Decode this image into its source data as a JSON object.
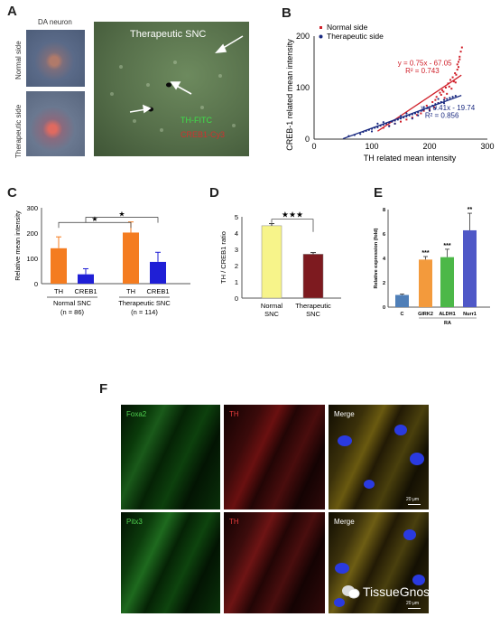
{
  "panels": {
    "A": {
      "label": "A",
      "da_neuron": "DA neuron",
      "normal_side": "Normal side",
      "therapeutic_side": "Therapeutic side",
      "therapeutic_snc": "Therapeutic SNC",
      "th_fitc": "TH-FITC",
      "creb1_cy3": "CREB1-Cy3"
    },
    "B": {
      "label": "B"
    },
    "C": {
      "label": "C"
    },
    "D": {
      "label": "D"
    },
    "E": {
      "label": "E"
    },
    "F": {
      "label": "F",
      "row1": [
        "Foxa2",
        "TH",
        "Merge"
      ],
      "row2": [
        "Pitx3",
        "TH",
        "Merge"
      ],
      "scalebar": "20 μm",
      "watermark": "TissueGnostics"
    }
  },
  "chart_data": [
    {
      "id": "B",
      "type": "scatter",
      "xlabel": "TH related mean intensity",
      "ylabel": "CREB-1 related mean intensity",
      "xlim": [
        0,
        300
      ],
      "ylim": [
        0,
        200
      ],
      "xticks": [
        "0",
        "100",
        "200",
        "300"
      ],
      "yticks": [
        "0",
        "100",
        "200"
      ],
      "legend": "top-left",
      "series": [
        {
          "name": "Normal side",
          "color": "#d0202a",
          "equation": "y = 0.75x - 67.05",
          "r2": "R² = 0.743",
          "fit": [
            0.75,
            -67.05
          ],
          "fit_range": [
            110,
            255
          ],
          "points": [
            [
              195,
              65
            ],
            [
              205,
              72
            ],
            [
              212,
              82
            ],
            [
              218,
              90
            ],
            [
              222,
              95
            ],
            [
              228,
              100
            ],
            [
              232,
              108
            ],
            [
              236,
              115
            ],
            [
              240,
              120
            ],
            [
              244,
              128
            ],
            [
              248,
              135
            ],
            [
              250,
              150
            ],
            [
              252,
              160
            ],
            [
              254,
              170
            ],
            [
              256,
              178
            ],
            [
              245,
              110
            ],
            [
              238,
              98
            ],
            [
              230,
              88
            ],
            [
              226,
              80
            ],
            [
              215,
              70
            ],
            [
              208,
              62
            ],
            [
              200,
              58
            ],
            [
              190,
              55
            ],
            [
              185,
              50
            ],
            [
              178,
              47
            ],
            [
              170,
              42
            ],
            [
              160,
              38
            ],
            [
              150,
              34
            ],
            [
              140,
              30
            ],
            [
              130,
              26
            ],
            [
              120,
              22
            ],
            [
              248,
              145
            ],
            [
              252,
              155
            ],
            [
              246,
              125
            ],
            [
              242,
              112
            ],
            [
              234,
              102
            ],
            [
              220,
              86
            ],
            [
              210,
              76
            ],
            [
              224,
              92
            ],
            [
              250,
              140
            ]
          ]
        },
        {
          "name": "Therapeutic side",
          "color": "#1a2a80",
          "equation": "y = 0.41x - 19.74",
          "r2": "R² = 0.856",
          "fit": [
            0.41,
            -19.74
          ],
          "fit_range": [
            50,
            255
          ],
          "points": [
            [
              60,
              6
            ],
            [
              70,
              8
            ],
            [
              80,
              10
            ],
            [
              85,
              14
            ],
            [
              90,
              16
            ],
            [
              95,
              18
            ],
            [
              100,
              20
            ],
            [
              105,
              22
            ],
            [
              110,
              23
            ],
            [
              115,
              26
            ],
            [
              120,
              28
            ],
            [
              125,
              30
            ],
            [
              130,
              32
            ],
            [
              135,
              34
            ],
            [
              140,
              36
            ],
            [
              145,
              38
            ],
            [
              150,
              40
            ],
            [
              155,
              42
            ],
            [
              160,
              44
            ],
            [
              165,
              46
            ],
            [
              170,
              48
            ],
            [
              175,
              50
            ],
            [
              180,
              52
            ],
            [
              185,
              55
            ],
            [
              190,
              57
            ],
            [
              195,
              60
            ],
            [
              200,
              62
            ],
            [
              205,
              65
            ],
            [
              210,
              68
            ],
            [
              215,
              70
            ],
            [
              220,
              72
            ],
            [
              225,
              76
            ],
            [
              230,
              78
            ],
            [
              235,
              80
            ],
            [
              240,
              82
            ],
            [
              245,
              84
            ],
            [
              110,
              30
            ],
            [
              130,
              25
            ],
            [
              150,
              45
            ],
            [
              170,
              40
            ],
            [
              190,
              62
            ],
            [
              210,
              60
            ],
            [
              225,
              70
            ],
            [
              100,
              15
            ],
            [
              120,
              33
            ],
            [
              140,
              30
            ],
            [
              160,
              50
            ],
            [
              180,
              46
            ],
            [
              200,
              55
            ],
            [
              215,
              78
            ]
          ]
        }
      ]
    },
    {
      "id": "C",
      "type": "bar",
      "ylabel": "Relative mean intensity",
      "ylim": [
        0,
        300
      ],
      "yticks": [
        "0",
        "100",
        "200",
        "300"
      ],
      "groups": [
        {
          "name": "Normal SNC",
          "n": "(n = 86)",
          "bars": [
            {
              "label": "TH",
              "value": 140,
              "err": 45,
              "color": "#f47c20"
            },
            {
              "label": "CREB1",
              "value": 37,
              "err": 22,
              "color": "#1f1fd6"
            }
          ]
        },
        {
          "name": "Therapeutic SNC",
          "n": "(n = 114)",
          "bars": [
            {
              "label": "TH",
              "value": 202,
              "err": 42,
              "color": "#f47c20"
            },
            {
              "label": "CREB1",
              "value": 86,
              "err": 38,
              "color": "#1f1fd6"
            }
          ]
        }
      ],
      "significance": [
        "★",
        "★"
      ]
    },
    {
      "id": "D",
      "type": "bar",
      "ylabel": "TH / CREB1 ratio",
      "ylim": [
        0,
        5
      ],
      "yticks": [
        "0",
        "1",
        "2",
        "3",
        "4",
        "5"
      ],
      "bars": [
        {
          "label": "Normal\nSNC",
          "value": 4.45,
          "err": 0.13,
          "color": "#f7f48a"
        },
        {
          "label": "Therapeutic\nSNC",
          "value": 2.7,
          "err": 0.1,
          "color": "#7d1a1f"
        }
      ],
      "significance": "★★★"
    },
    {
      "id": "E",
      "type": "bar",
      "ylabel": "Relative expression (fold)",
      "ylim": [
        0,
        8
      ],
      "yticks": [
        "0",
        "2",
        "4",
        "6",
        "8"
      ],
      "bars": [
        {
          "label": "C",
          "value": 1.0,
          "err": 0.08,
          "color": "#4f7fb8",
          "sig": ""
        },
        {
          "label": "GIRK2",
          "value": 3.9,
          "err": 0.25,
          "color": "#f39a3c",
          "sig": "***"
        },
        {
          "label": "ALDH1",
          "value": 4.1,
          "err": 0.65,
          "color": "#4cb848",
          "sig": "***"
        },
        {
          "label": "Nurr1",
          "value": 6.3,
          "err": 1.4,
          "color": "#4f58c7",
          "sig": "**"
        }
      ],
      "group_label": "RA"
    }
  ]
}
